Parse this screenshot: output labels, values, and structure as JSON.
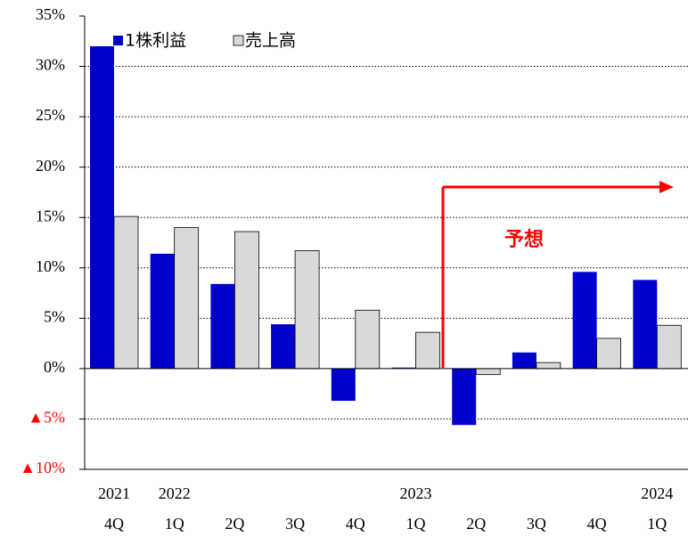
{
  "chart_data": {
    "type": "bar",
    "categories": [
      "4Q",
      "1Q",
      "2Q",
      "3Q",
      "4Q",
      "1Q",
      "2Q",
      "3Q",
      "4Q",
      "1Q"
    ],
    "category_years": [
      "2021",
      "2022",
      null,
      null,
      null,
      "2023",
      null,
      null,
      null,
      "2024"
    ],
    "series": [
      {
        "name": "1株利益",
        "color": "#0000cc",
        "values": [
          32,
          11.4,
          8.4,
          4.4,
          -3.2,
          0.1,
          -5.6,
          1.6,
          9.6,
          8.8
        ]
      },
      {
        "name": "売上高",
        "color": "#d9d9d9",
        "values": [
          15.1,
          14.0,
          13.6,
          11.7,
          5.8,
          3.6,
          -0.6,
          0.6,
          3.0,
          4.3
        ]
      }
    ],
    "ylim": [
      -10,
      35
    ],
    "yticks": [
      {
        "value": -10,
        "label": "▲10%"
      },
      {
        "value": -5,
        "label": "▲5%"
      },
      {
        "value": 0,
        "label": "0%"
      },
      {
        "value": 5,
        "label": "5%"
      },
      {
        "value": 10,
        "label": "10%"
      },
      {
        "value": 15,
        "label": "15%"
      },
      {
        "value": 20,
        "label": "20%"
      },
      {
        "value": 25,
        "label": "25%"
      },
      {
        "value": 30,
        "label": "30%"
      },
      {
        "value": 35,
        "label": "35%"
      }
    ],
    "grid": true,
    "legend": "top-left",
    "annotation": "予想"
  }
}
